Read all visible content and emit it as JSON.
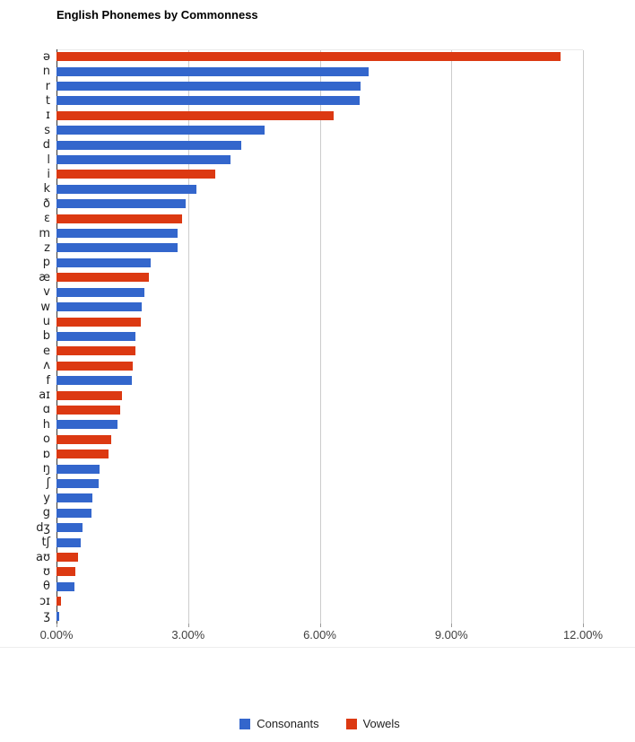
{
  "chart_data": {
    "type": "bar",
    "orientation": "horizontal",
    "title": "English Phonemes by Commonness",
    "xlabel": "",
    "ylabel": "",
    "xlim": [
      0,
      12
    ],
    "grid": true,
    "legend_position": "bottom",
    "x_ticks": [
      {
        "label": "0.00%",
        "value": 0
      },
      {
        "label": "3.00%",
        "value": 3
      },
      {
        "label": "6.00%",
        "value": 6
      },
      {
        "label": "9.00%",
        "value": 9
      },
      {
        "label": "12.00%",
        "value": 12
      }
    ],
    "series": [
      {
        "name": "Consonants",
        "color": "#3366CC"
      },
      {
        "name": "Vowels",
        "color": "#DC3912"
      }
    ],
    "bars": [
      {
        "label": "ə",
        "series": "Vowels",
        "value": 11.49
      },
      {
        "label": "n",
        "series": "Consonants",
        "value": 7.11
      },
      {
        "label": "r",
        "series": "Consonants",
        "value": 6.94
      },
      {
        "label": "t",
        "series": "Consonants",
        "value": 6.91
      },
      {
        "label": "ɪ",
        "series": "Vowels",
        "value": 6.32
      },
      {
        "label": "s",
        "series": "Consonants",
        "value": 4.75
      },
      {
        "label": "d",
        "series": "Consonants",
        "value": 4.21
      },
      {
        "label": "l",
        "series": "Consonants",
        "value": 3.96
      },
      {
        "label": "i",
        "series": "Vowels",
        "value": 3.61
      },
      {
        "label": "k",
        "series": "Consonants",
        "value": 3.18
      },
      {
        "label": "ð",
        "series": "Consonants",
        "value": 2.95
      },
      {
        "label": "ɛ",
        "series": "Vowels",
        "value": 2.86
      },
      {
        "label": "m",
        "series": "Consonants",
        "value": 2.76
      },
      {
        "label": "z",
        "series": "Consonants",
        "value": 2.76
      },
      {
        "label": "p",
        "series": "Consonants",
        "value": 2.15
      },
      {
        "label": "æ",
        "series": "Vowels",
        "value": 2.1
      },
      {
        "label": "v",
        "series": "Consonants",
        "value": 2.01
      },
      {
        "label": "w",
        "series": "Consonants",
        "value": 1.95
      },
      {
        "label": "u",
        "series": "Vowels",
        "value": 1.93
      },
      {
        "label": "b",
        "series": "Consonants",
        "value": 1.8
      },
      {
        "label": "e",
        "series": "Vowels",
        "value": 1.79
      },
      {
        "label": "ʌ",
        "series": "Vowels",
        "value": 1.74
      },
      {
        "label": "f",
        "series": "Consonants",
        "value": 1.71
      },
      {
        "label": "aɪ",
        "series": "Vowels",
        "value": 1.5
      },
      {
        "label": "ɑ",
        "series": "Vowels",
        "value": 1.45
      },
      {
        "label": "h",
        "series": "Consonants",
        "value": 1.4
      },
      {
        "label": "o",
        "series": "Vowels",
        "value": 1.25
      },
      {
        "label": "ɒ",
        "series": "Vowels",
        "value": 1.18
      },
      {
        "label": "ŋ",
        "series": "Consonants",
        "value": 0.99
      },
      {
        "label": "ʃ",
        "series": "Consonants",
        "value": 0.97
      },
      {
        "label": "y",
        "series": "Consonants",
        "value": 0.81
      },
      {
        "label": "g",
        "series": "Consonants",
        "value": 0.8
      },
      {
        "label": "dʒ",
        "series": "Consonants",
        "value": 0.59
      },
      {
        "label": "tʃ",
        "series": "Consonants",
        "value": 0.56
      },
      {
        "label": "aʊ",
        "series": "Vowels",
        "value": 0.5
      },
      {
        "label": "ʊ",
        "series": "Vowels",
        "value": 0.43
      },
      {
        "label": "θ",
        "series": "Consonants",
        "value": 0.41
      },
      {
        "label": "ɔɪ",
        "series": "Vowels",
        "value": 0.1
      },
      {
        "label": "ʒ",
        "series": "Consonants",
        "value": 0.07
      }
    ]
  },
  "legend": {
    "items": [
      {
        "label": "Consonants",
        "color": "#3366CC"
      },
      {
        "label": "Vowels",
        "color": "#DC3912"
      }
    ]
  }
}
